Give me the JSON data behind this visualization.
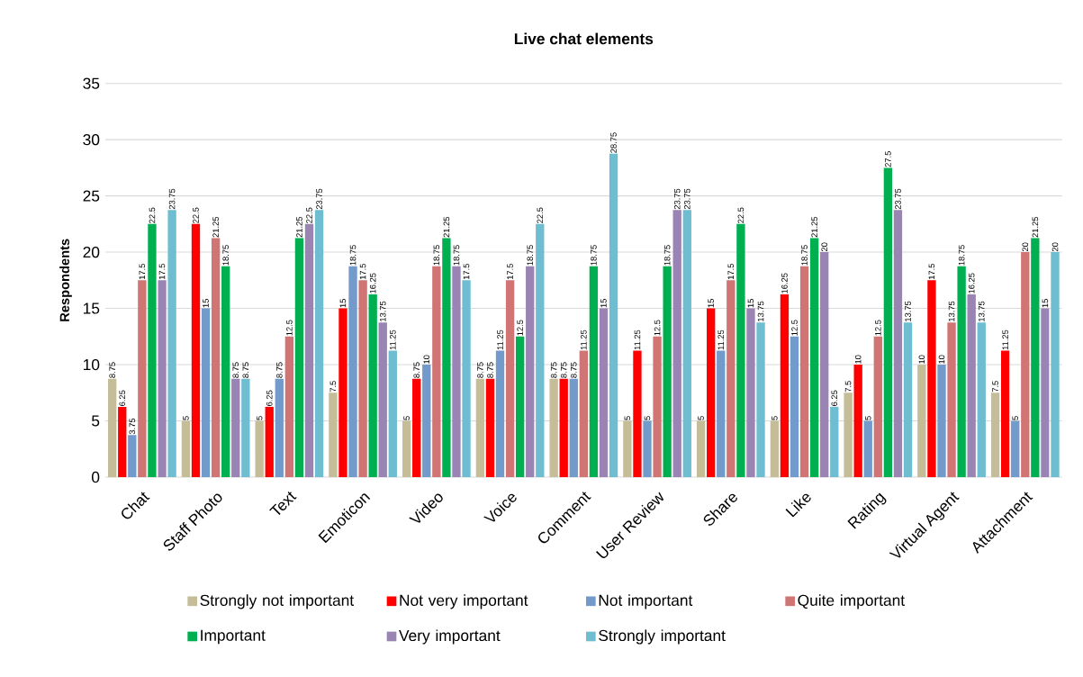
{
  "chart_data": {
    "type": "bar",
    "title": "Live chat elements",
    "ylabel": "Respondents",
    "categories": [
      "Chat",
      "Staff Photo",
      "Text",
      "Emoticon",
      "Video",
      "Voice",
      "Comment",
      "User Review",
      "Share",
      "Like",
      "Rating",
      "Virtual Agent",
      "Attachment"
    ],
    "series": [
      {
        "name": "Strongly not important",
        "color": "#c4bd97",
        "values": [
          8.75,
          5,
          5,
          7.5,
          5,
          8.75,
          8.75,
          5,
          5,
          5,
          7.5,
          10,
          7.5
        ]
      },
      {
        "name": "Not very important",
        "color": "#ff0000",
        "values": [
          6.25,
          22.5,
          6.25,
          15,
          8.75,
          8.75,
          8.75,
          11.25,
          15,
          16.25,
          10,
          17.5,
          11.25
        ]
      },
      {
        "name": "Not important",
        "color": "#729aca",
        "values": [
          3.75,
          15,
          8.75,
          18.75,
          10,
          11.25,
          8.75,
          5,
          11.25,
          12.5,
          5,
          10,
          5
        ]
      },
      {
        "name": "Quite important",
        "color": "#d07474",
        "values": [
          17.5,
          21.25,
          12.5,
          17.5,
          18.75,
          17.5,
          11.25,
          12.5,
          17.5,
          18.75,
          12.5,
          13.75,
          20
        ]
      },
      {
        "name": "Important",
        "color": "#00b050",
        "values": [
          22.5,
          18.75,
          21.25,
          16.25,
          21.25,
          12.5,
          18.75,
          18.75,
          22.5,
          21.25,
          27.5,
          18.75,
          21.25
        ]
      },
      {
        "name": "Very important",
        "color": "#9a84b4",
        "values": [
          17.5,
          8.75,
          22.5,
          13.75,
          18.75,
          18.75,
          15,
          23.75,
          15,
          20,
          23.75,
          16.25,
          15
        ]
      },
      {
        "name": "Strongly important",
        "color": "#6fbdd1",
        "values": [
          23.75,
          8.75,
          23.75,
          11.25,
          17.5,
          22.5,
          28.75,
          23.75,
          13.75,
          6.25,
          13.75,
          13.75,
          20
        ]
      }
    ],
    "ylim": [
      0,
      35
    ],
    "yticks": [
      0,
      5,
      10,
      15,
      20,
      25,
      30,
      35
    ],
    "grid": "y",
    "legend": "bottom",
    "data_labels": true
  }
}
